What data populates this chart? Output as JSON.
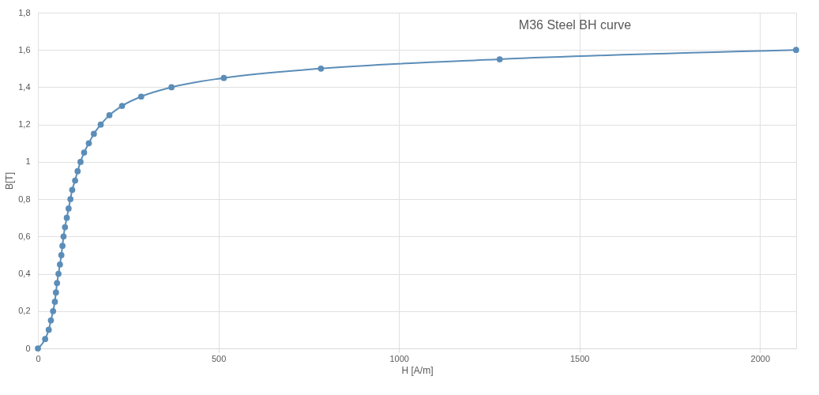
{
  "chart_data": {
    "type": "line",
    "title": "M36 Steel BH curve",
    "xlabel": "H [A/m]",
    "ylabel": "B[T]",
    "x": [
      0,
      20,
      30,
      36,
      42,
      47,
      50,
      53,
      57,
      61,
      65,
      68,
      71,
      75,
      80,
      85,
      90,
      95,
      103,
      110,
      118,
      128,
      141,
      155,
      174,
      198,
      233,
      286,
      370,
      515,
      784,
      1279,
      2100
    ],
    "series": [
      {
        "color": "#5b8db8",
        "values": [
          0,
          0.05,
          0.1,
          0.15,
          0.2,
          0.25,
          0.3,
          0.35,
          0.4,
          0.45,
          0.5,
          0.55,
          0.6,
          0.65,
          0.7,
          0.75,
          0.8,
          0.85,
          0.9,
          0.95,
          1,
          1.05,
          1.1,
          1.15,
          1.2,
          1.25,
          1.3,
          1.35,
          1.4,
          1.45,
          1.5,
          1.55,
          1.6
        ]
      }
    ],
    "xlim": [
      0,
      2100
    ],
    "xticks": [
      0,
      500,
      1000,
      1500,
      2000
    ],
    "ylim": [
      0,
      1.8
    ],
    "yticks": [
      0,
      {
        "value": 0.2,
        "label": "0,2"
      },
      {
        "value": 0.4,
        "label": "0,4"
      },
      {
        "value": 0.6,
        "label": "0,6"
      },
      {
        "value": 0.8,
        "label": "0,8"
      },
      1,
      {
        "value": 1.2,
        "label": "1,2"
      },
      {
        "value": 1.4,
        "label": "1,4"
      },
      {
        "value": 1.6,
        "label": "1,6"
      },
      {
        "value": 1.8,
        "label": "1,8"
      }
    ],
    "grid": true,
    "marker": "circle",
    "line_style": "solid",
    "legend": false
  }
}
